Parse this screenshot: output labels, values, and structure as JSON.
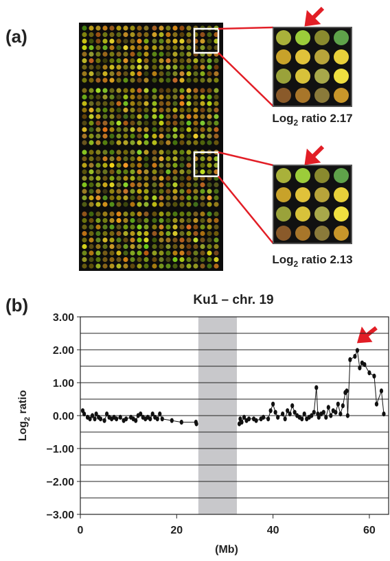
{
  "panel_a": {
    "label": "(a)",
    "captions": [
      {
        "prefix": "Log",
        "sub": "2",
        "suffix": " ratio 2.17"
      },
      {
        "prefix": "Log",
        "sub": "2",
        "suffix": " ratio 2.13"
      }
    ]
  },
  "panel_b": {
    "label": "(b)"
  },
  "chart_data": {
    "type": "line",
    "title": "Ku1 – chr. 19",
    "y_label": {
      "prefix": "Log",
      "sub": "2",
      "suffix": " ratio"
    },
    "x_label": "(Mb)",
    "xlim": [
      0,
      64
    ],
    "xticks": [
      0,
      20,
      40,
      60
    ],
    "ylim": [
      -3,
      3
    ],
    "yticks": [
      {
        "value": 3,
        "label": "3.00"
      },
      {
        "value": 2,
        "label": "2.00"
      },
      {
        "value": 1,
        "label": "1.00"
      },
      {
        "value": 0,
        "label": "0.00"
      },
      {
        "value": -1,
        "label": "−1.00"
      },
      {
        "value": -2,
        "label": "−2.00"
      },
      {
        "value": -3,
        "label": "−3.00"
      }
    ],
    "minor_yticks": [
      2.5,
      1.5,
      0.5,
      -0.5,
      -1.5,
      -2.5
    ],
    "grid": true,
    "shaded_region": [
      24.5,
      32.5
    ],
    "color": "#111111",
    "x": [
      0.5,
      0.8,
      1.5,
      2,
      2.5,
      3,
      3.3,
      3.8,
      4.2,
      5,
      5.5,
      6,
      6.5,
      7,
      7.5,
      8.3,
      9,
      9.5,
      10.5,
      11,
      11.5,
      12,
      12.5,
      13,
      13.5,
      14,
      14.5,
      15,
      15.5,
      16,
      16.5,
      17,
      19,
      21,
      24,
      24.1,
      null,
      33,
      33.2,
      33.5,
      34,
      34.5,
      35,
      36,
      36.5,
      37.5,
      38,
      39,
      39.5,
      40,
      40.5,
      41,
      42,
      42.5,
      43,
      43.5,
      44,
      44.5,
      45,
      45.5,
      46,
      46.5,
      47,
      47.5,
      48,
      48.5,
      49,
      49.3,
      49.5,
      50,
      50.5,
      51,
      51.5,
      52,
      52.5,
      53,
      53.5,
      54,
      54.5,
      55,
      55.3,
      55.5,
      56,
      57,
      57.5,
      58,
      58.5,
      59,
      60,
      61,
      61.5,
      62.5,
      63
    ],
    "values": [
      0.15,
      0.05,
      -0.05,
      -0.1,
      0.0,
      -0.1,
      0.05,
      -0.05,
      -0.1,
      -0.15,
      0.05,
      -0.05,
      -0.1,
      -0.05,
      -0.1,
      -0.05,
      -0.15,
      -0.1,
      -0.05,
      -0.1,
      -0.15,
      0.0,
      0.05,
      -0.05,
      -0.1,
      -0.05,
      -0.1,
      0.05,
      -0.05,
      -0.1,
      0.05,
      -0.1,
      -0.15,
      -0.2,
      -0.2,
      -0.25,
      null,
      -0.25,
      -0.1,
      -0.2,
      -0.05,
      -0.15,
      -0.1,
      -0.1,
      -0.15,
      -0.1,
      -0.05,
      -0.1,
      0.15,
      0.35,
      0.1,
      -0.05,
      0.05,
      -0.1,
      0.15,
      0.05,
      0.3,
      0.1,
      0.0,
      -0.05,
      -0.1,
      0.05,
      -0.1,
      -0.05,
      0.0,
      0.1,
      0.85,
      0.05,
      -0.05,
      0.05,
      0.1,
      -0.05,
      0.25,
      0.0,
      0.15,
      0.1,
      0.35,
      0.05,
      0.3,
      0.7,
      0.75,
      0.0,
      1.7,
      1.8,
      1.98,
      1.45,
      1.6,
      1.55,
      1.3,
      1.2,
      0.35,
      0.75,
      0.05
    ]
  }
}
